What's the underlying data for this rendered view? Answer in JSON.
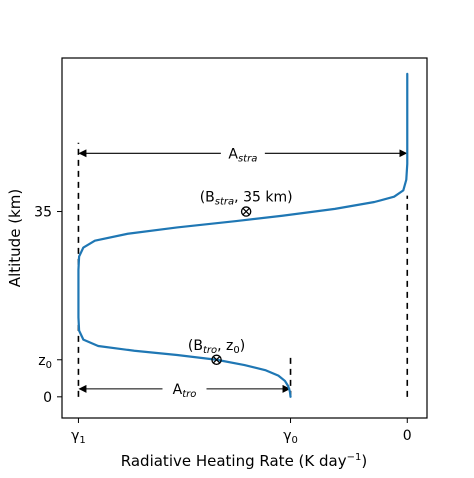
{
  "chart_data": {
    "type": "line",
    "title": "",
    "xlabel": "Radiative Heating Rate (K day",
    "xlabel_sup": "−1",
    "xlabel_end": ")",
    "ylabel": "Altitude (km)",
    "xlim": [
      -1.05,
      0.06
    ],
    "ylim": [
      -4,
      64
    ],
    "x_ticks": [
      {
        "value": -1.0,
        "label": "γ",
        "sub": "1"
      },
      {
        "value": -0.355,
        "label": "γ",
        "sub": "0"
      },
      {
        "value": 0.0,
        "label": "0",
        "sub": ""
      }
    ],
    "y_ticks": [
      {
        "value": 0,
        "label": "0",
        "sub": ""
      },
      {
        "value": 7,
        "label": "z",
        "sub": "0"
      },
      {
        "value": 35,
        "label": "35",
        "sub": ""
      }
    ],
    "series": [
      {
        "color": "#1f77b4",
        "points": [
          [
            -0.355,
            0
          ],
          [
            -0.357,
            1.0
          ],
          [
            -0.362,
            2.0
          ],
          [
            -0.372,
            3.0
          ],
          [
            -0.392,
            4.0
          ],
          [
            -0.43,
            5.0
          ],
          [
            -0.495,
            6.0
          ],
          [
            -0.58,
            7.0
          ],
          [
            -0.7,
            7.9
          ],
          [
            -0.83,
            8.7
          ],
          [
            -0.94,
            9.6
          ],
          [
            -0.985,
            10.8
          ],
          [
            -0.998,
            12.5
          ],
          [
            -1.0,
            15
          ],
          [
            -1.0,
            20
          ],
          [
            -1.0,
            24
          ],
          [
            -0.998,
            26.5
          ],
          [
            -0.985,
            28.2
          ],
          [
            -0.95,
            29.5
          ],
          [
            -0.85,
            30.8
          ],
          [
            -0.7,
            32.0
          ],
          [
            -0.52,
            33.2
          ],
          [
            -0.38,
            34.2
          ],
          [
            -0.22,
            35.5
          ],
          [
            -0.1,
            36.8
          ],
          [
            -0.04,
            37.8
          ],
          [
            -0.012,
            39.0
          ],
          [
            -0.003,
            41
          ],
          [
            0.0,
            44
          ],
          [
            0.0,
            50
          ],
          [
            0.0,
            61
          ]
        ]
      }
    ],
    "markers": [
      {
        "x": -0.58,
        "y": 7.0,
        "label": "(B",
        "sub": "tro",
        "label_end": ", z",
        "sub2": "0",
        "label_close": ")"
      },
      {
        "x": -0.49,
        "y": 35.0,
        "label": "(B",
        "sub": "stra",
        "label_end": ", 35 km)",
        "sub2": "",
        "label_close": ""
      }
    ],
    "annotations": [
      {
        "name": "A-stra",
        "text": "A",
        "sub": "stra",
        "from": -1.0,
        "to": 0.0,
        "y": 46
      },
      {
        "name": "A-tro",
        "text": "A",
        "sub": "tro",
        "from": -1.0,
        "to": -0.355,
        "y": 1.5
      }
    ],
    "dashed_verticals": [
      {
        "x": -1.0,
        "y0": 0,
        "y1": 48
      },
      {
        "x": -0.355,
        "y0": 0,
        "y1": 7.5
      },
      {
        "x": 0.0,
        "y0": 0,
        "y1": 38
      }
    ]
  }
}
